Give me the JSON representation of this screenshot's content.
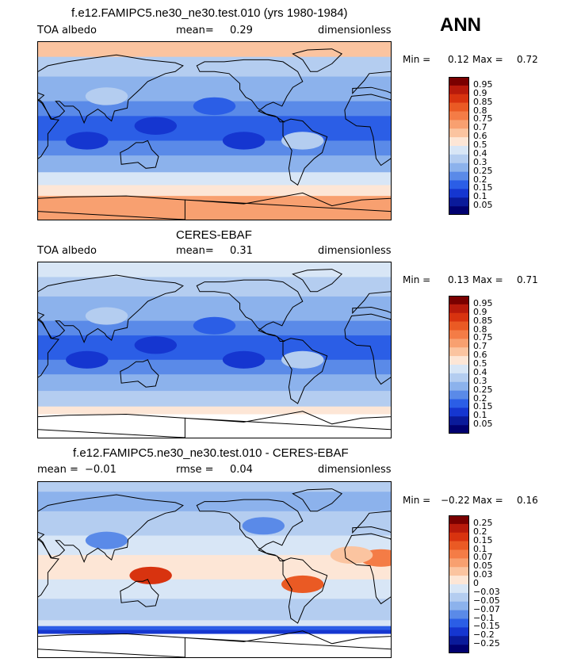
{
  "season": "ANN",
  "panels": [
    {
      "title": "f.e12.FAMIPC5.ne30_ne30.test.010 (yrs 1980-1984)",
      "left_label": "TOA albedo",
      "center_label": "mean=",
      "center_value": "0.29",
      "right_label": "dimensionless",
      "min_label": "Min =",
      "min_value": "0.12",
      "max_label": "Max =",
      "max_value": "0.72"
    },
    {
      "title": "CERES-EBAF",
      "left_label": "TOA albedo",
      "center_label": "mean=",
      "center_value": "0.31",
      "right_label": "dimensionless",
      "min_label": "Min =",
      "min_value": "0.13",
      "max_label": "Max =",
      "max_value": "0.71"
    },
    {
      "title": "f.e12.FAMIPC5.ne30_ne30.test.010 - CERES-EBAF",
      "left_label": "mean =",
      "left_value": "−0.01",
      "center_label": "rmse =",
      "center_value": "0.04",
      "right_label": "dimensionless",
      "min_label": "Min =",
      "min_value": "−0.22",
      "max_label": "Max =",
      "max_value": "0.16"
    }
  ],
  "chart_data": [
    {
      "type": "heatmap",
      "title": "f.e12.FAMIPC5.ne30_ne30.test.010 (yrs 1980-1984)",
      "variable": "TOA albedo",
      "units": "dimensionless",
      "mean": 0.29,
      "min": 0.12,
      "max": 0.72,
      "colorbar_levels": [
        "0.95",
        "0.9",
        "0.85",
        "0.8",
        "0.75",
        "0.7",
        "0.6",
        "0.5",
        "0.4",
        "0.3",
        "0.25",
        "0.2",
        "0.15",
        "0.1",
        "0.05"
      ],
      "colorbar_colors": [
        "#7a0000",
        "#b81a0b",
        "#d8330f",
        "#ea5a24",
        "#f47c46",
        "#f8a070",
        "#fbc4a0",
        "#fde6d6",
        "#d8e6f6",
        "#b4cdf0",
        "#8cb2ec",
        "#5a8ae8",
        "#2b5ee6",
        "#1536d0",
        "#0a1a9a",
        "#000070"
      ]
    },
    {
      "type": "heatmap",
      "title": "CERES-EBAF",
      "variable": "TOA albedo",
      "units": "dimensionless",
      "mean": 0.31,
      "min": 0.13,
      "max": 0.71,
      "colorbar_levels": [
        "0.95",
        "0.9",
        "0.85",
        "0.8",
        "0.75",
        "0.7",
        "0.6",
        "0.5",
        "0.4",
        "0.3",
        "0.25",
        "0.2",
        "0.15",
        "0.1",
        "0.05"
      ],
      "colorbar_colors": [
        "#7a0000",
        "#b81a0b",
        "#d8330f",
        "#ea5a24",
        "#f47c46",
        "#f8a070",
        "#fbc4a0",
        "#fde6d6",
        "#d8e6f6",
        "#b4cdf0",
        "#8cb2ec",
        "#5a8ae8",
        "#2b5ee6",
        "#1536d0",
        "#0a1a9a",
        "#000070"
      ]
    },
    {
      "type": "heatmap",
      "title": "f.e12.FAMIPC5.ne30_ne30.test.010 - CERES-EBAF",
      "units": "dimensionless",
      "mean": -0.01,
      "rmse": 0.04,
      "min": -0.22,
      "max": 0.16,
      "colorbar_levels": [
        "0.25",
        "0.2",
        "0.15",
        "0.1",
        "0.07",
        "0.05",
        "0.03",
        "0",
        "−0.03",
        "−0.05",
        "−0.07",
        "−0.1",
        "−0.15",
        "−0.2",
        "−0.25"
      ],
      "colorbar_colors": [
        "#7a0000",
        "#b81a0b",
        "#d8330f",
        "#ea5a24",
        "#f47c46",
        "#f8a070",
        "#fbc4a0",
        "#fde6d6",
        "#d8e6f6",
        "#b4cdf0",
        "#8cb2ec",
        "#5a8ae8",
        "#2b5ee6",
        "#1536d0",
        "#0a1a9a",
        "#000070"
      ]
    }
  ]
}
